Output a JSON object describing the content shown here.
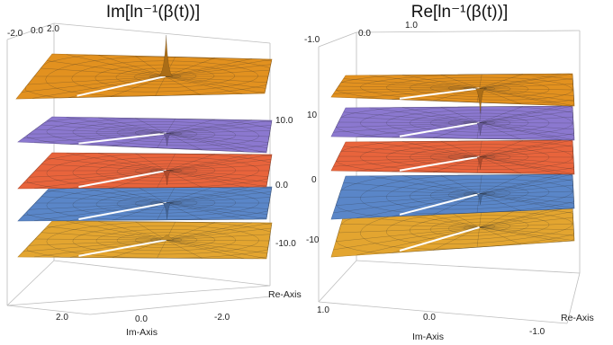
{
  "left": {
    "title": "Im[ln⁻¹(β(t))]",
    "top_ticks": [
      "-2.0",
      "0.0",
      "2.0"
    ],
    "side_ticks": [
      "10.0",
      "0.0",
      "-10.0"
    ],
    "bottom_ticks": [
      "2.0",
      "0.0",
      "-2.0"
    ],
    "x_axis_label": "Im-Axis",
    "y_axis_label": "Re-Axis"
  },
  "right": {
    "title": "Re[ln⁻¹(β(t))]",
    "top_ticks": [
      "-1.0",
      "0.0",
      "1.0"
    ],
    "side_ticks": [
      "10",
      "0",
      "-10"
    ],
    "bottom_ticks": [
      "1.0",
      "0.0",
      "-1.0"
    ],
    "x_axis_label": "Im-Axis",
    "y_axis_label": "Re-Axis"
  },
  "colors": {
    "layer_1": "#e2911f",
    "layer_2": "#8b78cf",
    "layer_3": "#e8643c",
    "layer_4": "#5a86c8",
    "layer_5": "#e3a530",
    "box": "#bdbdbd"
  }
}
